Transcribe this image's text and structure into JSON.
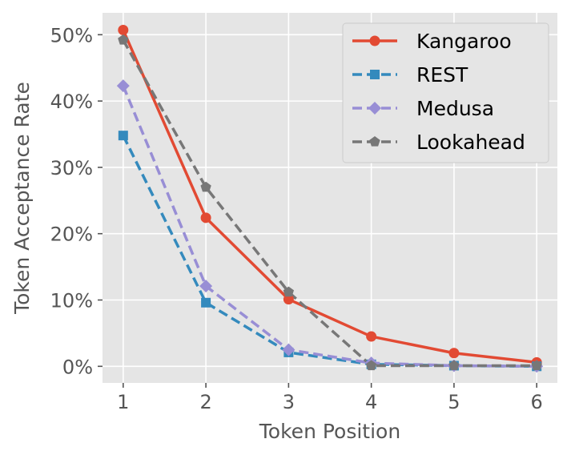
{
  "chart_data": {
    "type": "line",
    "title": "",
    "xlabel": "Token Position",
    "ylabel": "Token Acceptance Rate",
    "x": [
      1,
      2,
      3,
      4,
      5,
      6
    ],
    "xlim": [
      0.75,
      6.25
    ],
    "ylim": [
      -2.5,
      53.3
    ],
    "yticks": [
      0,
      10,
      20,
      30,
      40,
      50
    ],
    "ytick_labels": [
      "0%",
      "10%",
      "20%",
      "30%",
      "40%",
      "50%"
    ],
    "xtick_labels": [
      "1",
      "2",
      "3",
      "4",
      "5",
      "6"
    ],
    "grid": true,
    "legend_position": "top-right",
    "series": [
      {
        "name": "Kangaroo",
        "color": "#E24A33",
        "linestyle": "solid",
        "marker": "circle",
        "values": [
          50.7,
          22.4,
          10.1,
          4.5,
          2.0,
          0.6
        ]
      },
      {
        "name": "REST",
        "color": "#348ABD",
        "linestyle": "dashed",
        "marker": "square",
        "values": [
          34.8,
          9.6,
          2.1,
          0.3,
          0.1,
          0.0
        ]
      },
      {
        "name": "Medusa",
        "color": "#988ED5",
        "linestyle": "dashed",
        "marker": "diamond",
        "values": [
          42.3,
          12.1,
          2.5,
          0.5,
          0.1,
          0.0
        ]
      },
      {
        "name": "Lookahead",
        "color": "#777777",
        "linestyle": "dashed",
        "marker": "pentagon",
        "values": [
          49.2,
          27.0,
          11.2,
          0.1,
          0.1,
          0.1
        ]
      }
    ]
  }
}
